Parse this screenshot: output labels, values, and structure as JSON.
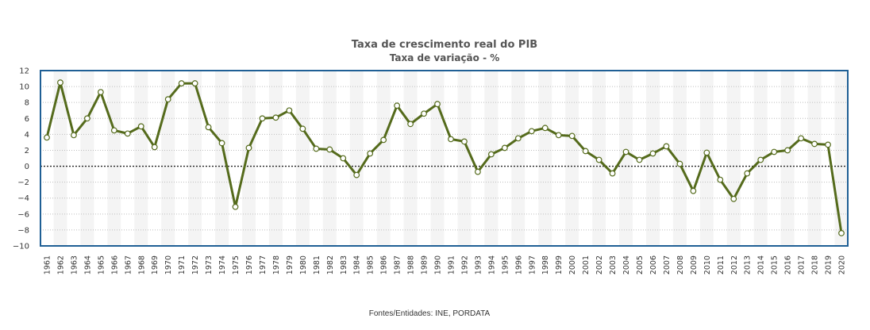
{
  "chart_data": {
    "type": "line",
    "title": "Taxa de crescimento real do PIB",
    "subtitle": "Taxa de variação - %",
    "source": "Fontes/Entidades: INE, PORDATA",
    "ylim": [
      -10,
      12
    ],
    "yticks": [
      12,
      10,
      8,
      6,
      4,
      2,
      0,
      -2,
      -4,
      -6,
      -8,
      -10
    ],
    "grid": true,
    "line_color": "#556b1c",
    "marker_fill": "#ffffff",
    "frame_color": "#1f5f95",
    "x": [
      "1961",
      "1962",
      "1963",
      "1964",
      "1965",
      "1966",
      "1967",
      "1968",
      "1969",
      "1970",
      "1971",
      "1972",
      "1973",
      "1974",
      "1975",
      "1976",
      "1977",
      "1978",
      "1979",
      "1980",
      "1981",
      "1982",
      "1983",
      "1984",
      "1985",
      "1986",
      "1987",
      "1988",
      "1989",
      "1990",
      "1991",
      "1992",
      "1993",
      "1994",
      "1995",
      "1996",
      "1997",
      "1998",
      "1999",
      "2000",
      "2001",
      "2002",
      "2003",
      "2004",
      "2005",
      "2006",
      "2007",
      "2008",
      "2009",
      "2010",
      "2011",
      "2012",
      "2013",
      "2014",
      "2015",
      "2016",
      "2017",
      "2018",
      "2019",
      "2020"
    ],
    "values": [
      3.6,
      10.5,
      3.9,
      6.0,
      9.3,
      4.5,
      4.1,
      5.0,
      2.4,
      8.4,
      10.4,
      10.4,
      4.9,
      2.9,
      -5.1,
      2.3,
      6.0,
      6.1,
      7.0,
      4.7,
      2.2,
      2.1,
      1.0,
      -1.1,
      1.6,
      3.3,
      7.6,
      5.3,
      6.6,
      7.8,
      3.4,
      3.1,
      -0.7,
      1.5,
      2.3,
      3.5,
      4.4,
      4.8,
      3.9,
      3.8,
      1.9,
      0.8,
      -0.9,
      1.8,
      0.8,
      1.6,
      2.5,
      0.3,
      -3.1,
      1.7,
      -1.7,
      -4.1,
      -0.9,
      0.8,
      1.8,
      2.0,
      3.5,
      2.8,
      2.7,
      -8.4
    ]
  }
}
